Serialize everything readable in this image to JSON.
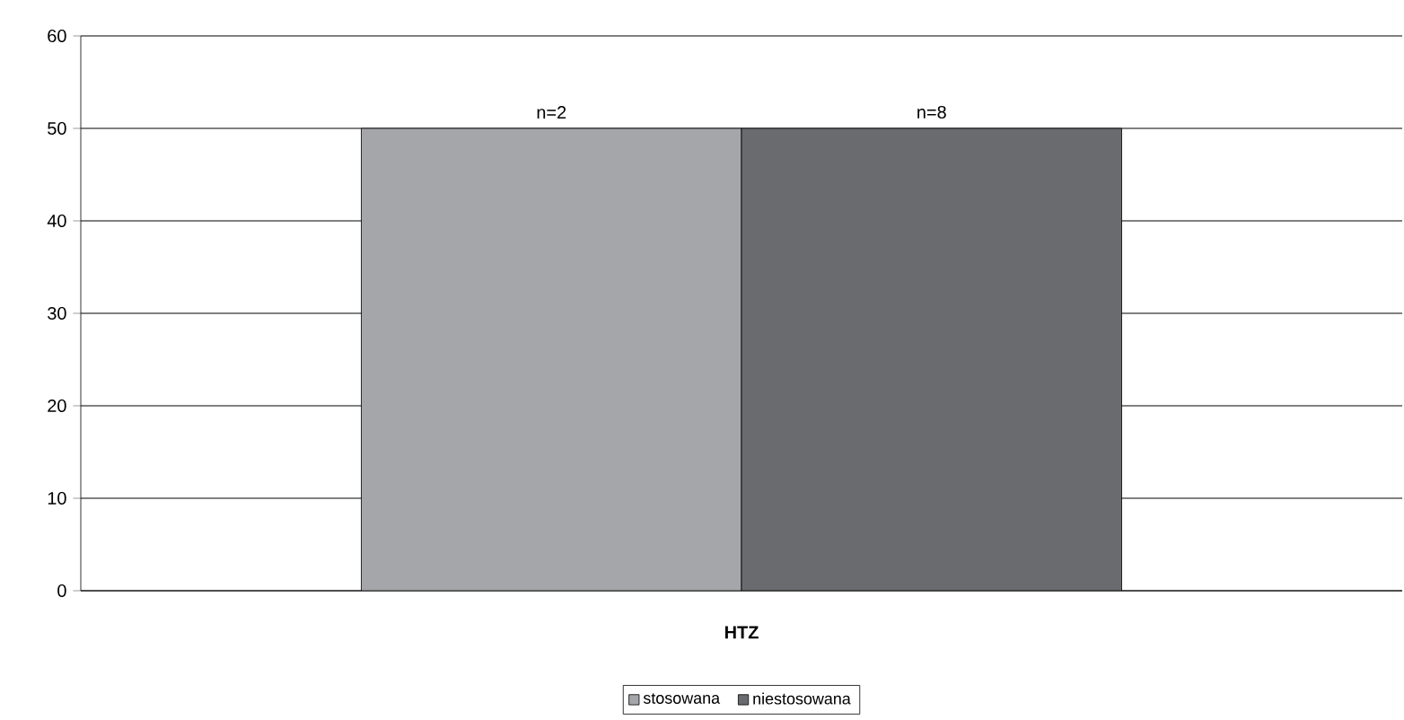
{
  "chart_data": {
    "type": "bar",
    "categories": [
      "HTZ"
    ],
    "series": [
      {
        "name": "stosowana",
        "color": "#a5a6aa",
        "values": [
          50
        ]
      },
      {
        "name": "niestosowana",
        "color": "#6a6b6f",
        "values": [
          50
        ]
      }
    ],
    "annotations": [
      "n=2",
      "n=8"
    ],
    "ylim": [
      0,
      60
    ],
    "yticks": [
      0,
      10,
      20,
      30,
      40,
      50,
      60
    ],
    "grid": "y",
    "legend": "bottom"
  }
}
